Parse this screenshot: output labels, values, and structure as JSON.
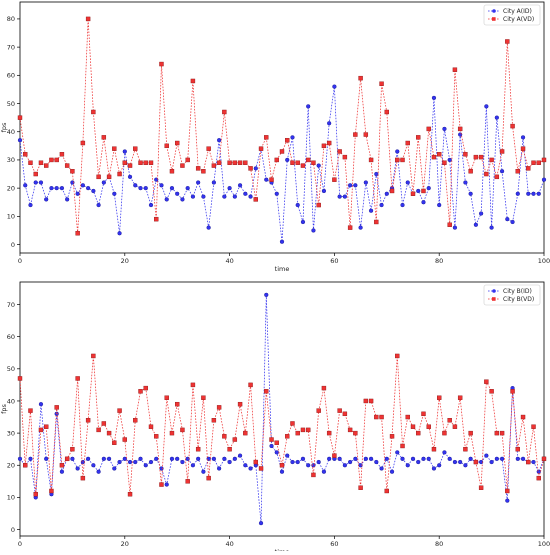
{
  "chart_data": [
    {
      "type": "line",
      "xlabel": "time",
      "ylabel": "fps",
      "xlim": [
        0,
        100
      ],
      "ylim": [
        -3,
        86
      ],
      "x_ticks": [
        0,
        20,
        40,
        60,
        80,
        100
      ],
      "y_ticks": [
        0,
        10,
        20,
        30,
        40,
        50,
        60,
        70,
        80
      ],
      "legend_position": "top-right",
      "series": [
        {
          "name": "City A(ID)",
          "color": "#3333ee",
          "marker": "circle",
          "values": [
            37,
            21,
            14,
            22,
            22,
            16,
            20,
            20,
            20,
            16,
            22,
            18,
            21,
            20,
            19,
            14,
            22,
            24,
            18,
            4,
            33,
            24,
            21,
            20,
            20,
            14,
            23,
            21,
            16,
            20,
            18,
            16,
            20,
            17,
            22,
            17,
            6,
            22,
            37,
            17,
            20,
            17,
            21,
            18,
            17,
            27,
            34,
            23,
            22,
            18,
            1,
            30,
            38,
            14,
            8,
            49,
            5,
            28,
            19,
            43,
            56,
            17,
            17,
            21,
            21,
            6,
            22,
            12,
            25,
            14,
            18,
            20,
            33,
            14,
            22,
            18,
            19,
            15,
            20,
            52,
            14,
            41,
            30,
            6,
            39,
            22,
            18,
            7,
            11,
            49,
            6,
            45,
            26,
            9,
            8,
            18,
            38,
            18,
            18,
            18,
            23
          ]
        },
        {
          "name": "City A(VD)",
          "color": "#ee3333",
          "marker": "square",
          "values": [
            45,
            32,
            29,
            25,
            29,
            28,
            30,
            30,
            32,
            28,
            26,
            4,
            36,
            80,
            47,
            24,
            38,
            24,
            34,
            25,
            29,
            28,
            34,
            29,
            29,
            29,
            9,
            64,
            35,
            26,
            36,
            28,
            30,
            58,
            27,
            26,
            34,
            28,
            29,
            47,
            29,
            29,
            29,
            29,
            27,
            16,
            34,
            38,
            23,
            30,
            33,
            37,
            29,
            29,
            28,
            30,
            29,
            14,
            35,
            36,
            23,
            33,
            31,
            6,
            39,
            59,
            39,
            30,
            8,
            57,
            47,
            19,
            30,
            30,
            36,
            18,
            38,
            19,
            41,
            31,
            32,
            29,
            7,
            62,
            41,
            32,
            26,
            31,
            31,
            25,
            30,
            24,
            33,
            72,
            42,
            26,
            34,
            27,
            29,
            29,
            30
          ]
        }
      ]
    },
    {
      "type": "line",
      "xlabel": "time",
      "ylabel": "fps",
      "xlim": [
        0,
        100
      ],
      "ylim": [
        -2,
        77
      ],
      "x_ticks": [
        0,
        20,
        40,
        60,
        80,
        100
      ],
      "y_ticks": [
        0,
        10,
        20,
        30,
        40,
        50,
        60,
        70
      ],
      "legend_position": "top-right",
      "series": [
        {
          "name": "City B(ID)",
          "color": "#3333ee",
          "marker": "circle",
          "values": [
            22,
            20,
            22,
            10,
            39,
            22,
            11,
            36,
            18,
            22,
            22,
            19,
            21,
            22,
            20,
            18,
            22,
            22,
            19,
            21,
            22,
            21,
            21,
            22,
            20,
            21,
            22,
            19,
            14,
            22,
            22,
            21,
            22,
            20,
            22,
            18,
            22,
            22,
            19,
            22,
            21,
            22,
            23,
            20,
            19,
            20,
            2,
            73,
            26,
            24,
            18,
            23,
            21,
            21,
            22,
            20,
            20,
            21,
            18,
            22,
            22,
            22,
            20,
            21,
            22,
            20,
            22,
            22,
            21,
            19,
            22,
            18,
            24,
            22,
            20,
            22,
            21,
            22,
            22,
            19,
            20,
            24,
            22,
            21,
            21,
            20,
            22,
            21,
            21,
            23,
            21,
            22,
            22,
            9,
            44,
            22,
            22,
            21,
            21,
            18,
            22
          ]
        },
        {
          "name": "City B(VD)",
          "color": "#ee3333",
          "marker": "square",
          "values": [
            47,
            20,
            37,
            11,
            31,
            32,
            12,
            38,
            20,
            22,
            25,
            47,
            16,
            34,
            54,
            31,
            33,
            30,
            27,
            37,
            28,
            11,
            34,
            43,
            44,
            32,
            29,
            14,
            41,
            30,
            39,
            31,
            15,
            45,
            25,
            41,
            16,
            34,
            38,
            29,
            25,
            28,
            39,
            30,
            45,
            21,
            19,
            43,
            28,
            27,
            20,
            29,
            33,
            30,
            31,
            31,
            17,
            37,
            44,
            30,
            23,
            37,
            36,
            31,
            30,
            13,
            40,
            40,
            35,
            35,
            12,
            29,
            54,
            26,
            35,
            32,
            30,
            36,
            32,
            25,
            41,
            30,
            34,
            32,
            41,
            25,
            30,
            21,
            13,
            46,
            43,
            30,
            30,
            12,
            43,
            25,
            35,
            21,
            32,
            16,
            22
          ]
        }
      ]
    }
  ]
}
